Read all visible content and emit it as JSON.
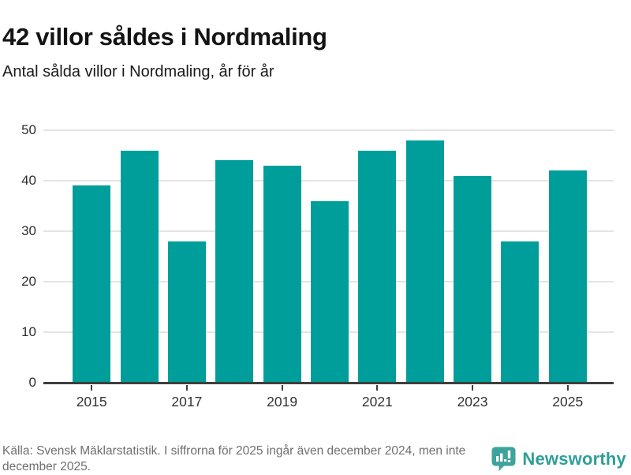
{
  "header": {
    "title": "42 villor såldes i Nordmaling",
    "subtitle": "Antal sålda villor i Nordmaling, år för år"
  },
  "chart_data": {
    "type": "bar",
    "title": "42 villor såldes i Nordmaling",
    "subtitle": "Antal sålda villor i Nordmaling, år för år",
    "categories": [
      "2015",
      "2016",
      "2017",
      "2018",
      "2019",
      "2020",
      "2021",
      "2022",
      "2023",
      "2024",
      "2025"
    ],
    "values": [
      39,
      46,
      28,
      44,
      43,
      36,
      46,
      48,
      41,
      28,
      42
    ],
    "xlabel": "",
    "ylabel": "",
    "ylim": [
      0,
      50
    ],
    "yticks": [
      0,
      10,
      20,
      30,
      40,
      50
    ],
    "xticks": [
      "2015",
      "2017",
      "2019",
      "2021",
      "2023",
      "2025"
    ],
    "grid": "horizontal",
    "legend": "none"
  },
  "footer": {
    "source": "Källa: Svensk Mäklarstatistik. I siffrorna för 2025 ingår även december 2024, men inte december 2025.",
    "logo_text": "Newsworthy"
  },
  "colors": {
    "bar": "#009e9b",
    "grid": "#e4e4e4",
    "axis": "#3f3f3f",
    "title_text": "#141414",
    "muted_text": "#6f6f6f",
    "logo_teal": "#3fa39d",
    "logo_text_teal": "#2f9e99"
  }
}
